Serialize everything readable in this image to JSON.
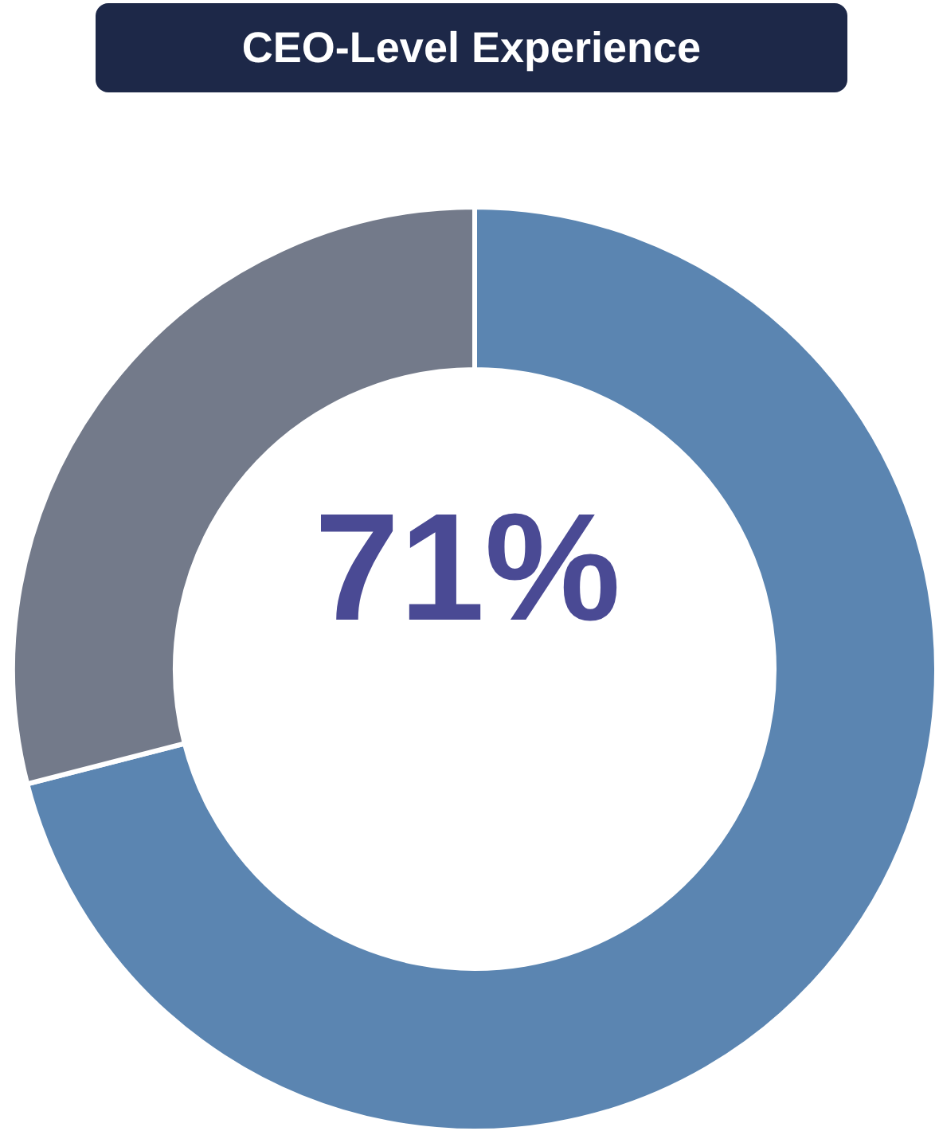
{
  "chart_data": {
    "type": "donut",
    "title": "CEO-Level Experience",
    "categories": [
      null,
      null
    ],
    "values": [
      71,
      29
    ],
    "colors": [
      "#5b85b1",
      "#737a8a"
    ],
    "value_labels": [
      "71%",
      null
    ]
  }
}
